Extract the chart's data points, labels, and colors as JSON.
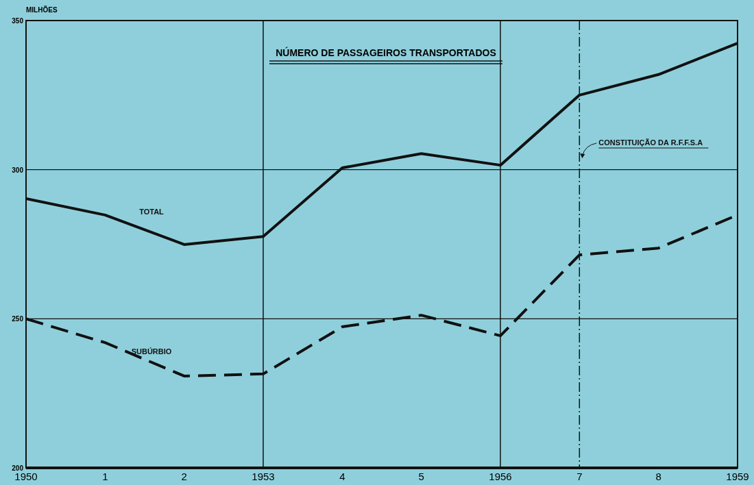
{
  "chart_data": {
    "type": "line",
    "title": "NÚMERO DE PASSAGEIROS TRANSPORTADOS",
    "ylabel": "MILHÕES",
    "categories": [
      "1950",
      "1",
      "2",
      "1953",
      "4",
      "5",
      "1956",
      "7",
      "8",
      "1959"
    ],
    "ylim": [
      200,
      350
    ],
    "yticks": [
      200,
      250,
      300,
      350
    ],
    "grid": "y",
    "legend": false,
    "marker": "none",
    "series": [
      {
        "name": "TOTAL",
        "color": "#111111",
        "line_style": "solid",
        "values": [
          290.3,
          284.8,
          274.9,
          277.6,
          300.6,
          305.4,
          301.5,
          325,
          331.9,
          342.4
        ]
      },
      {
        "name": "SUBÚRBIO",
        "color": "#111111",
        "line_style": "dashed",
        "values": [
          250,
          242,
          230.8,
          231.5,
          247.3,
          251.2,
          244.3,
          271.4,
          273.7,
          284.8
        ]
      }
    ],
    "ref_lines": [
      {
        "axis": "x",
        "value": "1953",
        "color": "#111111",
        "line_style": "solid"
      },
      {
        "axis": "x",
        "value": "1956",
        "color": "#111111",
        "line_style": "solid"
      },
      {
        "axis": "x",
        "value": "7",
        "color": "#111111",
        "line_style": "dashed",
        "label": "CONSTITUIÇÃO DA R.F.F.S.A"
      }
    ]
  }
}
